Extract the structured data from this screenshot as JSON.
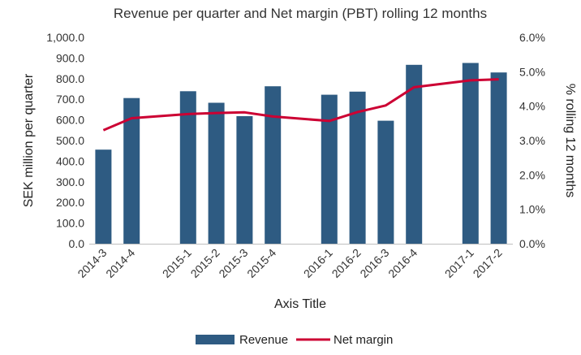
{
  "chart_data": {
    "type": "bar",
    "title": "Revenue per quarter and Net margin (PBT) rolling 12 months",
    "xlabel": "Axis Title",
    "ylabel": "SEK million per quarter",
    "y2label": "% rolling 12 months",
    "ylim": [
      0,
      1000
    ],
    "y2lim": [
      0,
      6
    ],
    "yticks": [
      "0.0",
      "100.0",
      "200.0",
      "300.0",
      "400.0",
      "500.0",
      "600.0",
      "700.0",
      "800.0",
      "900.0",
      "1,000.0"
    ],
    "y2ticks": [
      "0.0%",
      "1.0%",
      "2.0%",
      "3.0%",
      "4.0%",
      "5.0%",
      "6.0%"
    ],
    "categories": [
      "2014-3",
      "2014-4",
      "",
      "2015-1",
      "2015-2",
      "2015-3",
      "2015-4",
      "",
      "2016-1",
      "2016-2",
      "2016-3",
      "2016-4",
      "",
      "2017-1",
      "2017-2"
    ],
    "series": [
      {
        "name": "Revenue",
        "type": "bar",
        "axis": "left",
        "color": "#2e5b82",
        "values": [
          456,
          706,
          null,
          739,
          683,
          618,
          763,
          null,
          722,
          737,
          596,
          867,
          null,
          876,
          830
        ]
      },
      {
        "name": "Net margin",
        "type": "line",
        "axis": "right",
        "color": "#cc0033",
        "values": [
          3.3,
          3.65,
          null,
          3.77,
          3.8,
          3.82,
          3.7,
          null,
          3.57,
          3.83,
          4.02,
          4.55,
          null,
          4.75,
          4.78
        ]
      }
    ],
    "grid": false,
    "legend": "bottom"
  }
}
